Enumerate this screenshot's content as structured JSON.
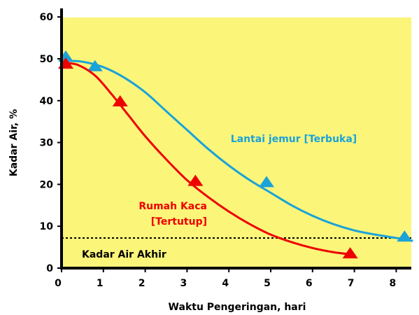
{
  "chart_data": {
    "type": "line",
    "xlabel": "Waktu Pengeringan, hari",
    "ylabel": "Kadar Air, %",
    "xlim": [
      0,
      8.4
    ],
    "ylim": [
      0,
      60
    ],
    "x_ticks": [
      "0",
      "1",
      "2",
      "3",
      "4",
      "5",
      "6",
      "7",
      "8"
    ],
    "y_ticks": [
      "0",
      "10",
      "20",
      "30",
      "40",
      "50",
      "60"
    ],
    "background": "#fbf57a",
    "series": [
      {
        "name": "Lantai jemur [Terbuka]",
        "label_lines": [
          "Lantai jemur [Terbuka]"
        ],
        "color": "#1aa3d8",
        "points": [
          [
            0.1,
            50.5
          ],
          [
            0.8,
            48.2
          ],
          [
            4.9,
            20.5
          ],
          [
            8.2,
            7.5
          ]
        ],
        "curve": [
          [
            0.1,
            49.5
          ],
          [
            0.5,
            49.3
          ],
          [
            1.0,
            48.0
          ],
          [
            1.5,
            45.5
          ],
          [
            2.0,
            42.0
          ],
          [
            2.5,
            37.5
          ],
          [
            3.0,
            33.0
          ],
          [
            3.5,
            28.5
          ],
          [
            4.0,
            24.5
          ],
          [
            4.5,
            21.0
          ],
          [
            5.0,
            18.0
          ],
          [
            5.5,
            15.0
          ],
          [
            6.0,
            12.5
          ],
          [
            6.5,
            10.5
          ],
          [
            7.0,
            9.0
          ],
          [
            7.5,
            8.0
          ],
          [
            8.0,
            7.2
          ],
          [
            8.4,
            6.5
          ]
        ]
      },
      {
        "name": "Rumah Kaca [Tertutup]",
        "label_lines": [
          "Rumah Kaca",
          "[Tertutup]"
        ],
        "color": "#ee0000",
        "points": [
          [
            0.1,
            48.8
          ],
          [
            1.4,
            39.8
          ],
          [
            3.2,
            20.8
          ],
          [
            6.9,
            3.5
          ]
        ],
        "curve": [
          [
            0.1,
            49.0
          ],
          [
            0.4,
            48.5
          ],
          [
            0.8,
            46.0
          ],
          [
            1.2,
            41.5
          ],
          [
            1.6,
            36.5
          ],
          [
            2.0,
            31.5
          ],
          [
            2.5,
            26.0
          ],
          [
            3.0,
            21.0
          ],
          [
            3.5,
            17.0
          ],
          [
            4.0,
            13.5
          ],
          [
            4.5,
            10.5
          ],
          [
            5.0,
            8.0
          ],
          [
            5.5,
            6.2
          ],
          [
            6.0,
            4.8
          ],
          [
            6.5,
            3.8
          ],
          [
            6.9,
            3.3
          ]
        ]
      }
    ],
    "reference_line": {
      "label": "Kadar Air Akhir",
      "y": 7.2,
      "style": "dotted",
      "color": "#000000"
    }
  }
}
